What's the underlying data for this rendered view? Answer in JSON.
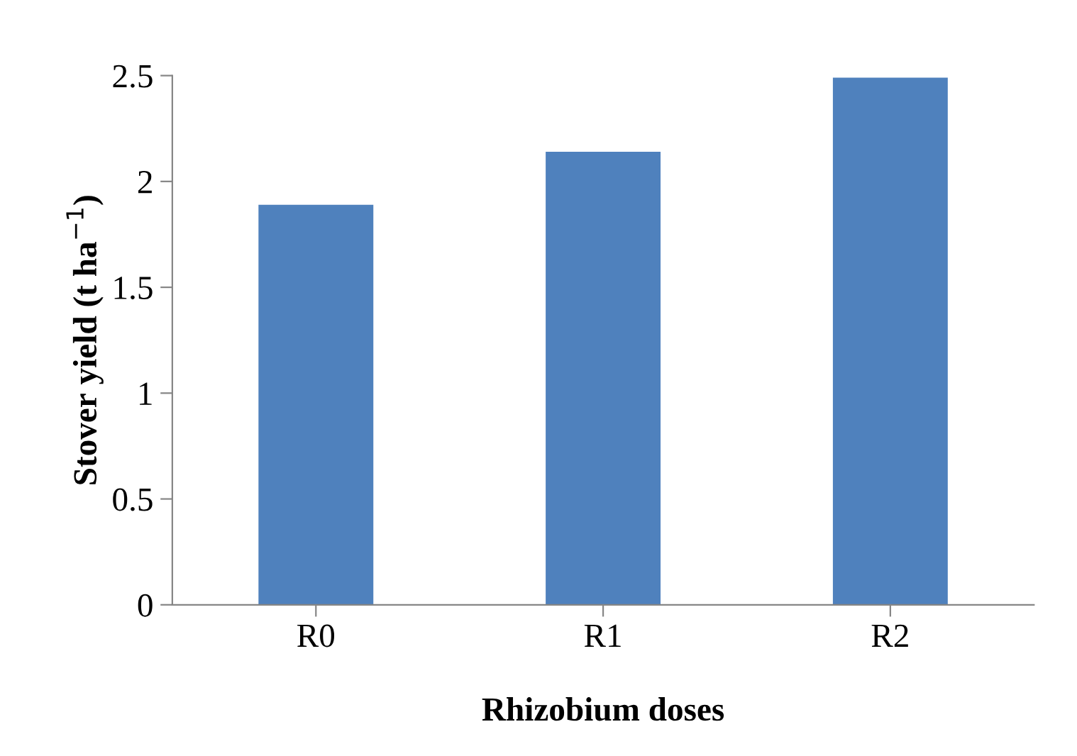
{
  "chart_data": {
    "type": "bar",
    "xlabel": "Rhizobium doses",
    "ylabel": "Stover yield (t ha$^{−1}$)",
    "categories": [
      "R0",
      "R1",
      "R2"
    ],
    "values": [
      1.89,
      2.14,
      2.49
    ],
    "color": "#4f81bd",
    "ylim": [
      0,
      2.5
    ],
    "yticks": [
      0,
      0.5,
      1,
      1.5,
      2,
      2.5
    ],
    "grid": false,
    "legend": false
  }
}
